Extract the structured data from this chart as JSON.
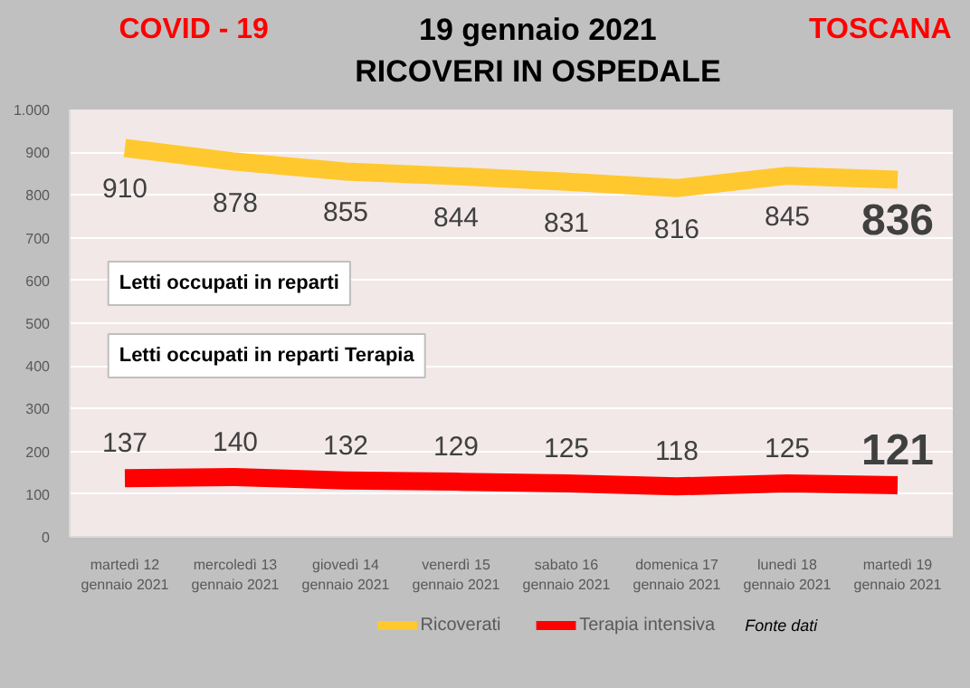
{
  "chart_data": {
    "type": "line",
    "title": "19 gennaio 2021",
    "subtitle": "RICOVERI IN OSPEDALE",
    "categories": [
      "martedì 12 gennaio 2021",
      "mercoledì 13 gennaio 2021",
      "giovedì 14 gennaio 2021",
      "venerdì 15 gennaio 2021",
      "sabato 16 gennaio 2021",
      "domenica 17 gennaio 2021",
      "lunedì 18 gennaio 2021",
      "martedì 19 gennaio 2021"
    ],
    "series": [
      {
        "name": "Ricoverati",
        "color": "#ffc82e",
        "values": [
          910,
          878,
          855,
          844,
          831,
          816,
          845,
          836
        ]
      },
      {
        "name": "Terapia intensiva",
        "color": "#ff0000",
        "values": [
          137,
          140,
          132,
          129,
          125,
          118,
          125,
          121
        ]
      }
    ],
    "ylim": [
      0,
      1000
    ],
    "yticks": [
      0,
      100,
      200,
      300,
      400,
      500,
      600,
      700,
      800,
      900,
      {
        "value": 1000,
        "label": "1.000"
      }
    ],
    "grid": "y",
    "legend": "bottom",
    "data_labels": true,
    "annotations": [
      "COVID - 19",
      "TOSCANA",
      "Letti occupati in reparti",
      "Letti occupati in reparti Terapia",
      "Fonte dati"
    ]
  }
}
